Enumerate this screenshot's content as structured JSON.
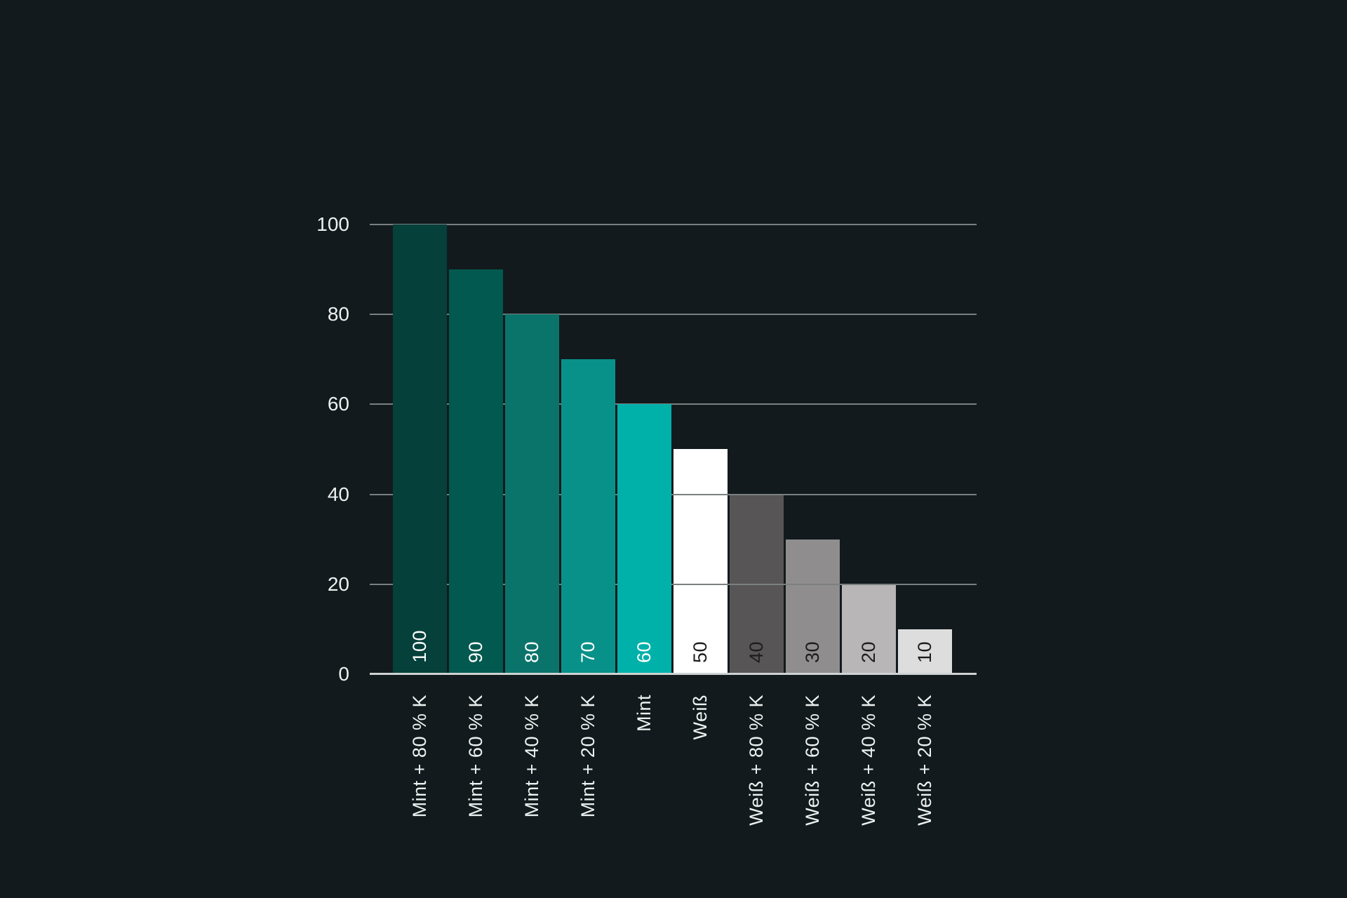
{
  "chart_data": {
    "type": "bar",
    "title": "",
    "xlabel": "",
    "ylabel": "",
    "categories": [
      "Mint + 80 % K",
      "Mint + 60 % K",
      "Mint + 40 % K",
      "Mint + 20 % K",
      "Mint",
      "Weiß",
      "Weiß + 80 % K",
      "Weiß + 60 % K",
      "Weiß + 40 % K",
      "Weiß + 20 % K"
    ],
    "values": [
      100,
      90,
      80,
      70,
      60,
      50,
      40,
      30,
      20,
      10
    ],
    "value_labels": [
      "100",
      "90",
      "80",
      "70",
      "60",
      "50",
      "40",
      "30",
      "20",
      "10"
    ],
    "bar_colors": [
      "#05403a",
      "#02594f",
      "#0a746b",
      "#089189",
      "#00b1a9",
      "#ffffff",
      "#575556",
      "#8f8d8e",
      "#b8b6b6",
      "#dedddd"
    ],
    "value_label_colors": [
      "#ffffff",
      "#ffffff",
      "#ffffff",
      "#ffffff",
      "#ffffff",
      "#1d1d1b",
      "#1d1d1b",
      "#1d1d1b",
      "#1d1d1b",
      "#1d1d1b"
    ],
    "ylim": [
      0,
      100
    ],
    "yticks": [
      0,
      20,
      40,
      60,
      80,
      100
    ],
    "grid": true,
    "legend": "none",
    "colors": {
      "background": "#121a1d",
      "gridline": "#7b7f80",
      "baseline": "#ced2d2",
      "tick_label": "#eef1f1",
      "category_label": "#eef1f1"
    }
  }
}
